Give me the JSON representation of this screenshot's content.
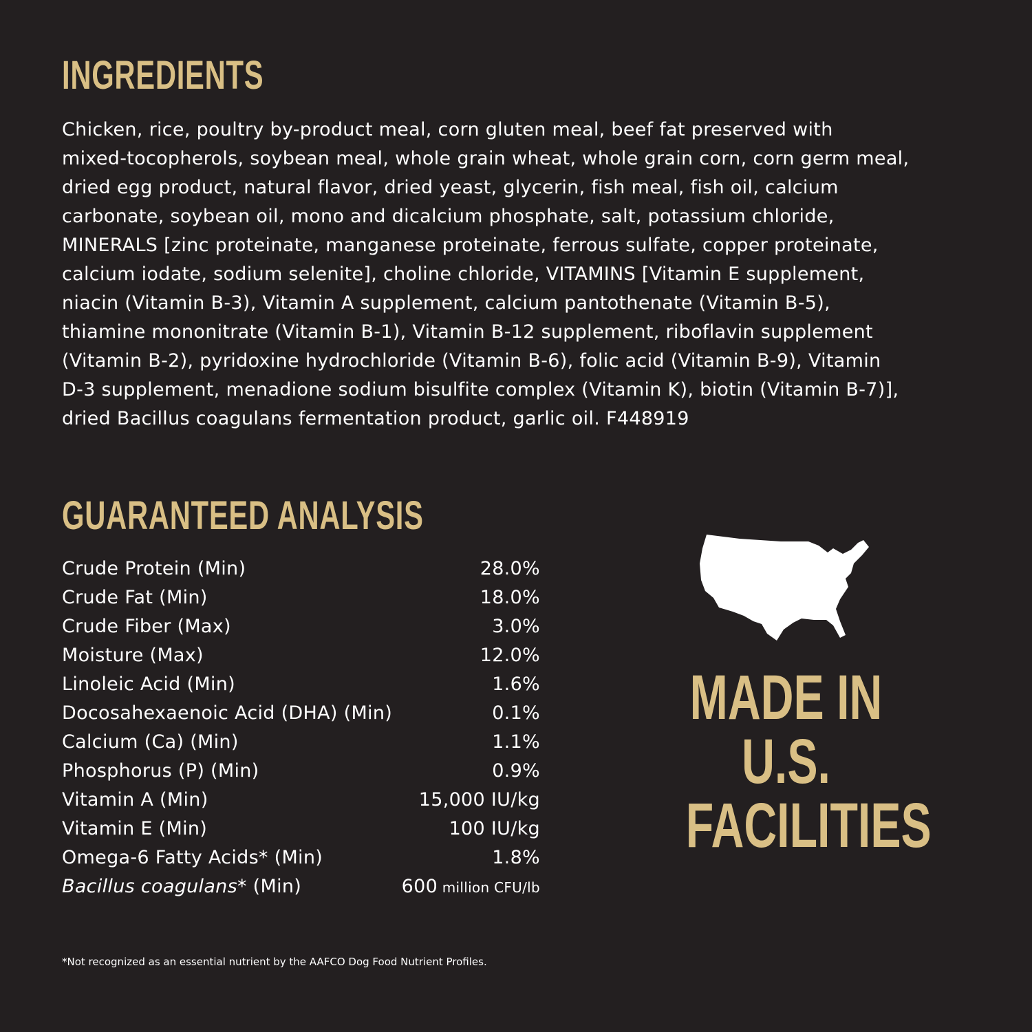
{
  "ingredients": {
    "title": "INGREDIENTS",
    "lines": [
      "Chicken, rice, poultry by-product meal, corn gluten meal, beef fat preserved with",
      "mixed-tocopherols, soybean meal, whole grain wheat, whole grain corn, corn germ meal,",
      "dried egg product, natural flavor, dried yeast, glycerin, fish meal, fish oil, calcium",
      "carbonate, soybean oil, mono and dicalcium phosphate, salt, potassium chloride,",
      "MINERALS [zinc proteinate, manganese proteinate, ferrous sulfate, copper proteinate,",
      "calcium iodate, sodium selenite], choline chloride, VITAMINS [Vitamin E supplement,",
      "niacin (Vitamin B-3), Vitamin A supplement, calcium pantothenate (Vitamin B-5),",
      "thiamine mononitrate (Vitamin B-1), Vitamin B-12 supplement, riboflavin supplement",
      "(Vitamin B-2), pyridoxine hydrochloride (Vitamin B-6), folic acid (Vitamin B-9), Vitamin",
      "D-3 supplement, menadione sodium bisulfite complex (Vitamin K), biotin (Vitamin B-7)],",
      "dried Bacillus coagulans fermentation product, garlic oil. F448919"
    ]
  },
  "analysis": {
    "title": "GUARANTEED ANALYSIS",
    "rows": [
      {
        "label": "Crude Protein (Min)",
        "value": "28.0%"
      },
      {
        "label": "Crude Fat (Min)",
        "value": "18.0%"
      },
      {
        "label": "Crude Fiber (Max)",
        "value": "3.0%"
      },
      {
        "label": "Moisture (Max)",
        "value": "12.0%"
      },
      {
        "label": "Linoleic Acid (Min)",
        "value": "1.6%"
      },
      {
        "label": "Docosahexaenoic Acid (DHA) (Min)",
        "value": "0.1%"
      },
      {
        "label": "Calcium (Ca) (Min)",
        "value": "1.1%"
      },
      {
        "label": "Phosphorus (P) (Min)",
        "value": "0.9%"
      },
      {
        "label": "Vitamin A (Min)",
        "value": "15,000 IU/kg"
      },
      {
        "label": "Vitamin E (Min)",
        "value": "100 IU/kg"
      },
      {
        "label": "Omega-6 Fatty Acids* (Min)",
        "value": "1.8%"
      }
    ],
    "last_row": {
      "label_italic": "Bacillus coagulans",
      "label_rest": "* (Min)",
      "value": "600",
      "unit": " million CFU/lb"
    },
    "footnote": "*Not recognized as an essential nutrient by the AAFCO Dog Food Nutrient Profiles."
  },
  "badge": {
    "icon": "usa-map-icon",
    "lines": [
      "MADE IN",
      "U.S.",
      "FACILITIES"
    ]
  },
  "colors": {
    "background": "#231f20",
    "accent": "#d9bf85",
    "text": "#ffffff"
  }
}
